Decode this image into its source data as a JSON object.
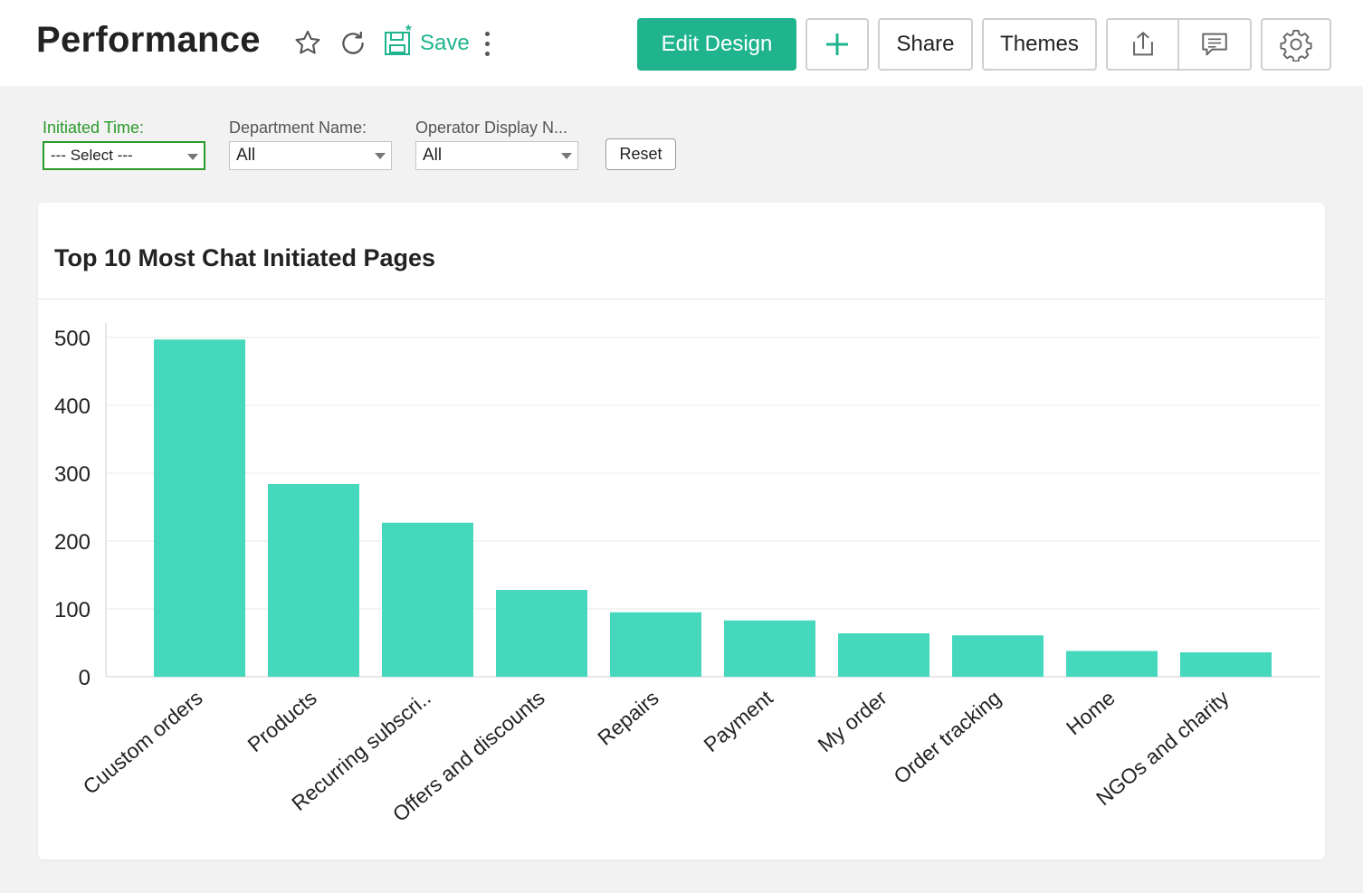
{
  "header": {
    "title": "Performance",
    "save_label": "Save",
    "buttons": {
      "edit_design": "Edit Design",
      "add": "+",
      "share": "Share",
      "themes": "Themes"
    },
    "icons": [
      "star-icon",
      "refresh-icon",
      "save-icon",
      "more-vertical-icon",
      "export-icon",
      "comment-icon",
      "gear-icon"
    ]
  },
  "filters": [
    {
      "label": "Initiated Time:",
      "value": "--- Select ---"
    },
    {
      "label": "Department Name:",
      "value": "All"
    },
    {
      "label": "Operator Display N...",
      "value": "All"
    }
  ],
  "reset_label": "Reset",
  "colors": {
    "accent": "#1fb48e",
    "bar": "#45d8bc",
    "active_filter": "#2a9a2a"
  },
  "card": {
    "title": "Top 10 Most Chat Initiated Pages"
  },
  "chart_data": {
    "type": "bar",
    "title": "Top 10 Most Chat Initiated Pages",
    "categories": [
      "Cuustom orders",
      "Products",
      "Recurring subscri..",
      "Offers and discounts",
      "Repairs",
      "Payment",
      "My order",
      "Order tracking",
      "Home",
      "NGOs and charity"
    ],
    "values": [
      497,
      284,
      227,
      128,
      95,
      83,
      64,
      61,
      38,
      36
    ],
    "yticks": [
      0,
      100,
      200,
      300,
      400,
      500
    ],
    "ylim": [
      0,
      500
    ],
    "xlabel": "",
    "ylabel": "",
    "grid": true,
    "legend": false
  }
}
